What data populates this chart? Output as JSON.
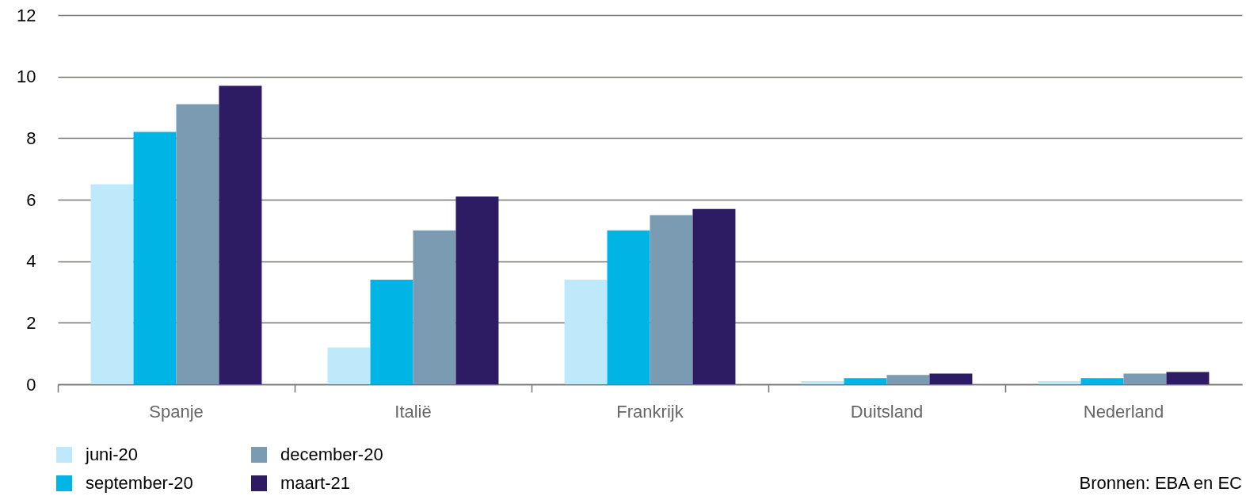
{
  "chart_data": {
    "type": "bar",
    "categories": [
      "Spanje",
      "Italië",
      "Frankrijk",
      "Duitsland",
      "Nederland"
    ],
    "series": [
      {
        "name": "juni-20",
        "color": "#bde9fb",
        "values": [
          6.5,
          1.2,
          3.4,
          0.1,
          0.1
        ]
      },
      {
        "name": "september-20",
        "color": "#00b5e6",
        "values": [
          8.2,
          3.4,
          5.0,
          0.2,
          0.2
        ]
      },
      {
        "name": "december-20",
        "color": "#7a9bb1",
        "values": [
          9.1,
          5.0,
          5.5,
          0.3,
          0.35
        ]
      },
      {
        "name": "maart-21",
        "color": "#2d1b63",
        "values": [
          9.7,
          6.1,
          5.7,
          0.35,
          0.4
        ]
      }
    ],
    "ylim": [
      0,
      12
    ],
    "yticks": [
      0,
      2,
      4,
      6,
      8,
      10,
      12
    ],
    "grid": "y",
    "legend": "bottom left",
    "annotations": [
      "Bronnen: EBA en EC"
    ]
  }
}
